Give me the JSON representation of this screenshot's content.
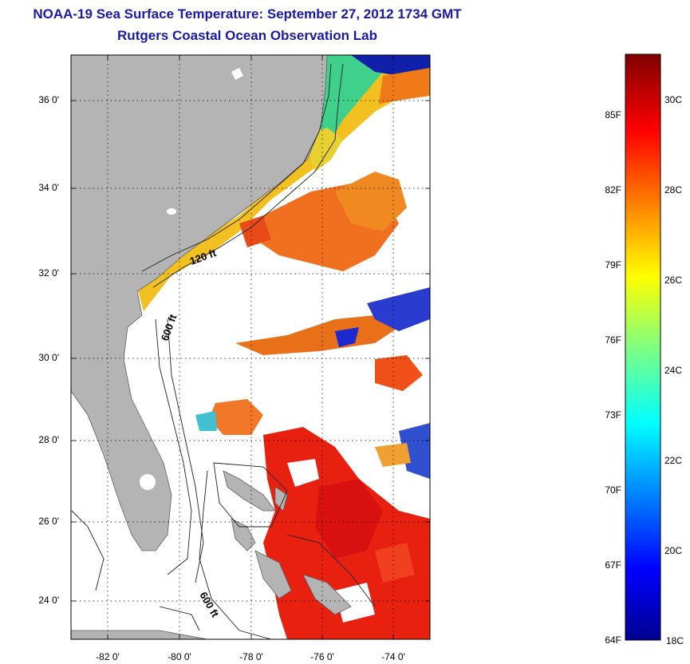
{
  "title": {
    "line1": "NOAA-19 Sea Surface Temperature:  September 27, 2012 1734 GMT",
    "line2": "Rutgers Coastal Ocean Observation Lab"
  },
  "map": {
    "y_axis_labels": [
      "36 0'",
      "34 0'",
      "32 0'",
      "30 0'",
      "28 0'",
      "26 0'",
      "24 0'"
    ],
    "x_axis_labels": [
      "-82 0'",
      "-80 0'",
      "-78 0'",
      "-76 0'",
      "-74 0'"
    ],
    "contour_labels": [
      "120 ft",
      "600 ft",
      "600 ft"
    ],
    "land_color": "#b4b4b4",
    "cloud_color": "#ffffff"
  },
  "colorbar": {
    "fahrenheit_labels": [
      "85F",
      "82F",
      "79F",
      "76F",
      "73F",
      "70F",
      "67F",
      "64F"
    ],
    "celsius_labels": [
      "30C",
      "28C",
      "26C",
      "24C",
      "22C",
      "20C",
      "18C"
    ],
    "colormap": "jet"
  }
}
